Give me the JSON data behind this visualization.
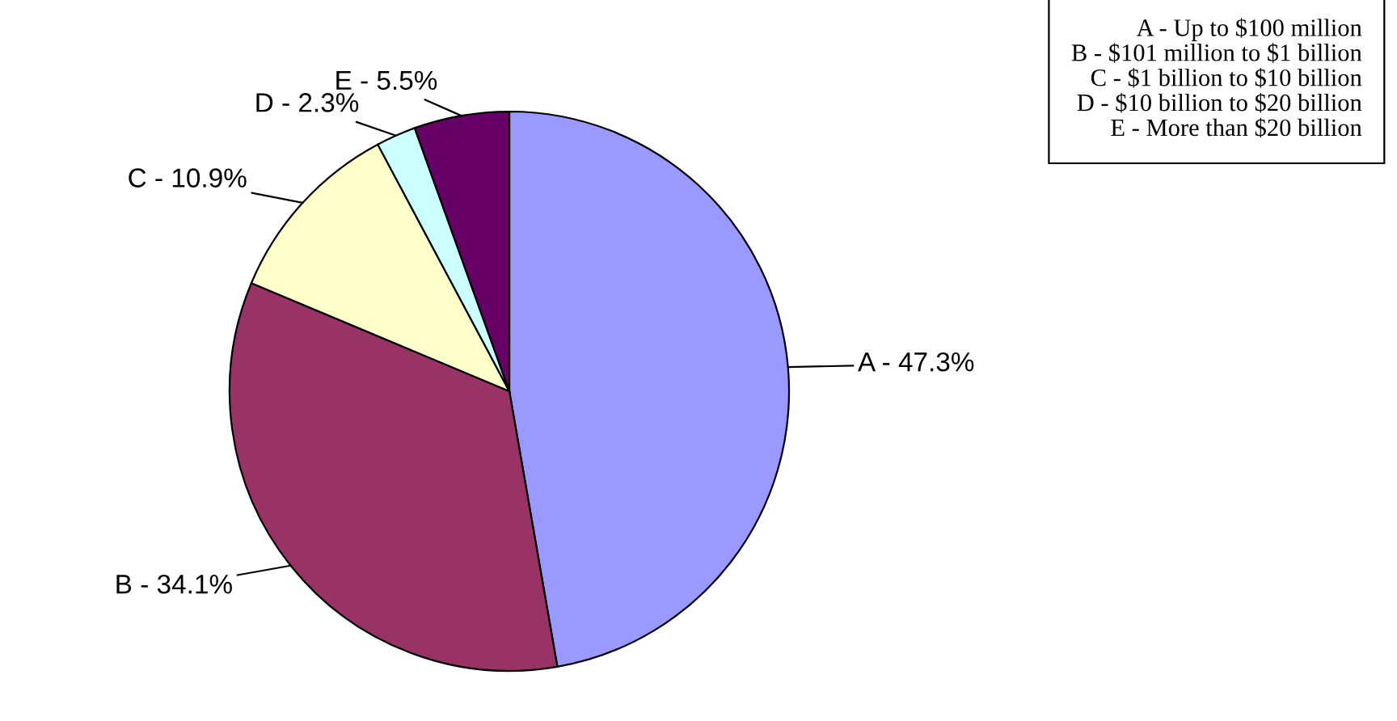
{
  "chart_data": {
    "type": "pie",
    "categories": [
      "A",
      "B",
      "C",
      "D",
      "E"
    ],
    "values": [
      47.3,
      34.1,
      10.9,
      2.3,
      5.5
    ],
    "colors": [
      "#9999ff",
      "#993366",
      "#ffffcc",
      "#ccffff",
      "#660066"
    ],
    "value_labels": [
      "47.3%",
      "34.1%",
      "10.9%",
      "2.3%",
      "5.5%"
    ],
    "annotations": [
      "A - Up to $100 million",
      "B - $101 million to $1 billion",
      "C - $1 billion to $10 billion",
      "D - $10 billion to $20 billion",
      "E - More than $20 billion"
    ]
  }
}
